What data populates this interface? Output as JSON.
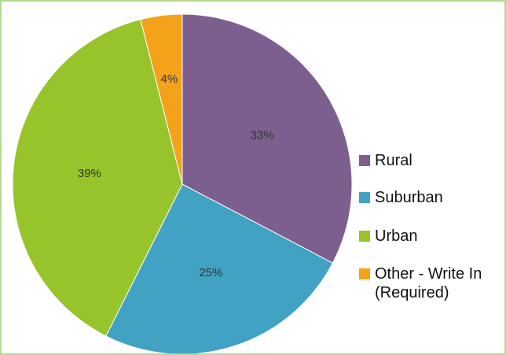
{
  "chart_data": {
    "type": "pie",
    "categories": [
      "Rural",
      "Suburban",
      "Urban",
      "Other - Write In (Required)"
    ],
    "values": [
      33,
      25,
      39,
      4
    ],
    "value_labels": [
      "33%",
      "25%",
      "39%",
      "4%"
    ],
    "colors": [
      "#7d5f8f",
      "#41a2c4",
      "#96c42a",
      "#f5a21b"
    ],
    "legend": "right"
  }
}
